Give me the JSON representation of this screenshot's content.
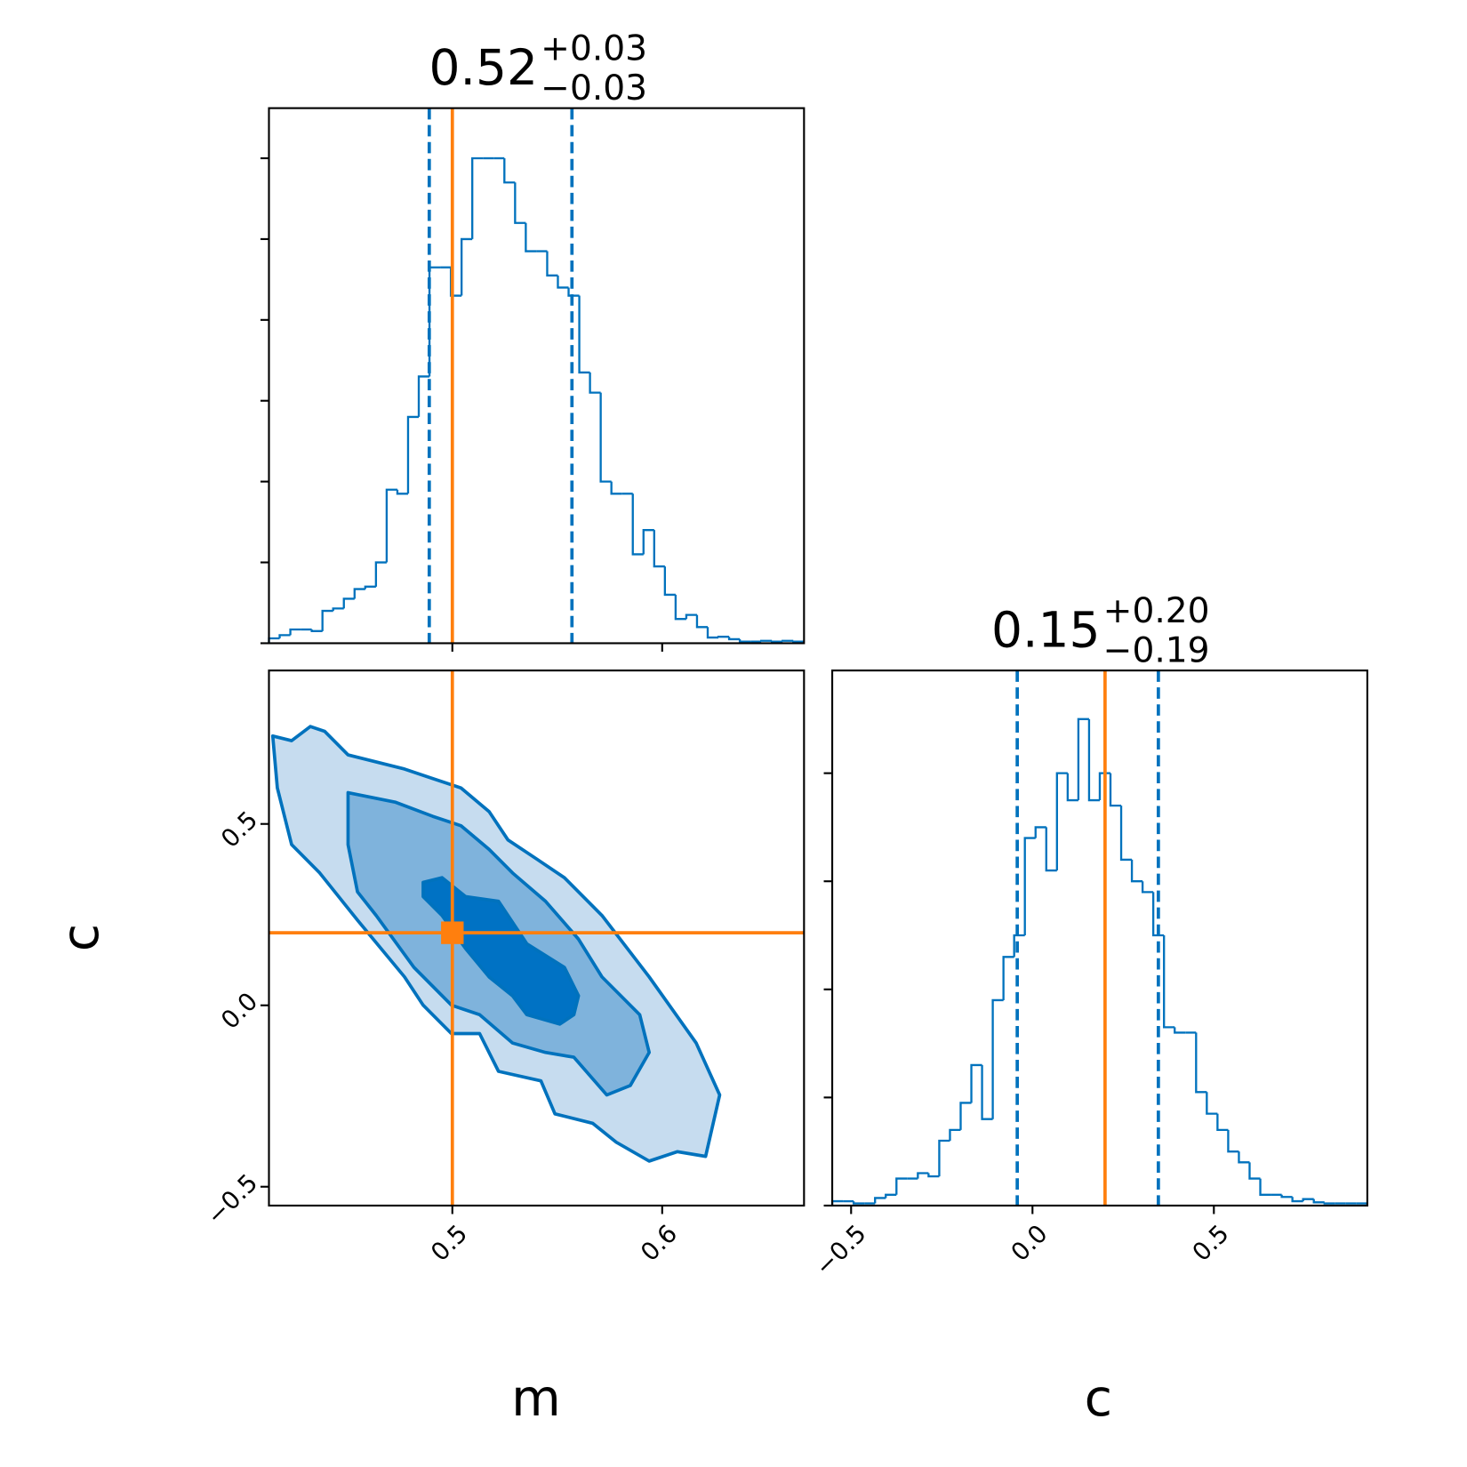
{
  "chart_data": [
    {
      "type": "histogram",
      "title": "0.52",
      "title_upper": "+0.03",
      "title_lower": "−0.03",
      "bins": [
        0.4126,
        0.4177,
        0.4228,
        0.4279,
        0.433,
        0.4381,
        0.4432,
        0.4483,
        0.4534,
        0.4585,
        0.4636,
        0.4687,
        0.4738,
        0.4789,
        0.484,
        0.4891,
        0.4942,
        0.4993,
        0.5044,
        0.5095,
        0.5146,
        0.5197,
        0.5248,
        0.5299,
        0.535,
        0.5401,
        0.5452,
        0.5503,
        0.5554,
        0.5605,
        0.5656,
        0.5707,
        0.5758,
        0.5809,
        0.586,
        0.5911,
        0.5962,
        0.6013,
        0.6064,
        0.6115,
        0.6166,
        0.6217,
        0.6268,
        0.6319,
        0.637,
        0.6421,
        0.6472,
        0.6523,
        0.6574,
        0.6625,
        0.6676
      ],
      "values": [
        0.06,
        0.1,
        0.17,
        0.17,
        0.15,
        0.4,
        0.43,
        0.55,
        0.67,
        0.7,
        1.0,
        1.9,
        1.85,
        2.8,
        3.3,
        4.65,
        4.65,
        4.3,
        5.0,
        6.0,
        6.0,
        6.0,
        5.7,
        5.2,
        4.85,
        4.85,
        4.55,
        4.4,
        4.3,
        3.35,
        3.1,
        2.0,
        1.85,
        1.85,
        1.1,
        1.4,
        0.95,
        0.6,
        0.3,
        0.35,
        0.2,
        0.07,
        0.08,
        0.05,
        0.02,
        0.02,
        0.03,
        0.02,
        0.03,
        0.02
      ],
      "color": "#0072bd",
      "quantiles": [
        0.489,
        0.557
      ],
      "quantile_color": "#0072bd",
      "truth": 0.5,
      "truth_color": "#ff7f0e",
      "xlim": [
        0.4126,
        0.6676
      ],
      "xticks": [
        0.5,
        0.6
      ],
      "show_xtick_labels": false,
      "ylim": [
        0,
        6.62
      ],
      "yticks": [
        0,
        1,
        2,
        3,
        4,
        5,
        6
      ],
      "show_ytick_labels": false
    },
    {
      "type": "contour",
      "xlabel": "m",
      "ylabel": "c",
      "line_color": "#0072bd",
      "contours": [
        {
          "color": "#c6dcef",
          "x": [
            0.4144,
            0.4234,
            0.4323,
            0.4391,
            0.4503,
            0.4772,
            0.4906,
            0.5041,
            0.5175,
            0.5265,
            0.54,
            0.5534,
            0.5713,
            0.5938,
            0.6162,
            0.6274,
            0.6207,
            0.6072,
            0.5938,
            0.5781,
            0.5669,
            0.5489,
            0.5422,
            0.522,
            0.513,
            0.4996,
            0.4861,
            0.4772,
            0.4548,
            0.4368,
            0.4234,
            0.4166
          ],
          "y": [
            0.7425,
            0.7295,
            0.7685,
            0.7555,
            0.6904,
            0.6514,
            0.6253,
            0.5993,
            0.5342,
            0.456,
            0.404,
            0.3519,
            0.2477,
            0.0784,
            -0.1039,
            -0.2471,
            -0.4164,
            -0.4034,
            -0.4294,
            -0.3773,
            -0.3253,
            -0.2992,
            -0.2081,
            -0.182,
            -0.0779,
            -0.0779,
            0.0003,
            0.0784,
            0.2347,
            0.3649,
            0.443,
            0.5993
          ]
        },
        {
          "color": "#7fb3dc",
          "x": [
            0.4503,
            0.4727,
            0.4906,
            0.5041,
            0.5175,
            0.5287,
            0.5444,
            0.5601,
            0.5713,
            0.5893,
            0.5938,
            0.5848,
            0.5736,
            0.5579,
            0.5444,
            0.5287,
            0.513,
            0.4996,
            0.4817,
            0.4637,
            0.4548,
            0.4503
          ],
          "y": [
            0.5863,
            0.5602,
            0.5212,
            0.4951,
            0.43,
            0.3649,
            0.2868,
            0.1826,
            0.0784,
            -0.0258,
            -0.1299,
            -0.2211,
            -0.2471,
            -0.143,
            -0.1299,
            -0.1039,
            -0.0258,
            0.0003,
            0.1045,
            0.2477,
            0.3128,
            0.443
          ]
        },
        {
          "color": "#0072c4",
          "x": [
            0.4861,
            0.4951,
            0.5063,
            0.522,
            0.5355,
            0.5534,
            0.5601,
            0.5579,
            0.5512,
            0.5355,
            0.5287,
            0.5175,
            0.5063,
            0.4951,
            0.4861
          ],
          "y": [
            0.3389,
            0.3519,
            0.2998,
            0.2868,
            0.1696,
            0.1045,
            0.0263,
            -0.0258,
            -0.0518,
            -0.0258,
            0.0263,
            0.0784,
            0.1566,
            0.2477,
            0.2998
          ]
        }
      ],
      "truth": [
        0.5,
        0.2
      ],
      "truth_color": "#ff7f0e",
      "xlim": [
        0.4126,
        0.6676
      ],
      "xticks": [
        0.5,
        0.6
      ],
      "ylim": [
        -0.552,
        0.923
      ],
      "yticks": [
        {
          "value": -0.5,
          "label": "−0.5"
        },
        {
          "value": 0,
          "label": "0.0"
        },
        0.5
      ]
    },
    {
      "type": "histogram",
      "title": "0.15",
      "title_upper": "+0.20",
      "title_lower": "−0.19",
      "xlabel": "c",
      "bins": [
        -0.552,
        -0.5225,
        -0.493,
        -0.4635,
        -0.434,
        -0.4045,
        -0.375,
        -0.3455,
        -0.316,
        -0.2865,
        -0.257,
        -0.2275,
        -0.198,
        -0.1685,
        -0.139,
        -0.1095,
        -0.08,
        -0.0505,
        -0.021,
        0.0085,
        0.038,
        0.0675,
        0.097,
        0.1265,
        0.156,
        0.1855,
        0.215,
        0.2445,
        0.274,
        0.3035,
        0.333,
        0.3625,
        0.392,
        0.4215,
        0.451,
        0.4805,
        0.51,
        0.5395,
        0.569,
        0.5985,
        0.628,
        0.6575,
        0.687,
        0.7165,
        0.746,
        0.7755,
        0.805,
        0.8345,
        0.864,
        0.8935,
        0.923
      ],
      "values": [
        0.04,
        0.04,
        0.02,
        0.02,
        0.07,
        0.1,
        0.25,
        0.25,
        0.3,
        0.27,
        0.6,
        0.7,
        0.95,
        1.3,
        0.8,
        1.9,
        2.3,
        2.5,
        3.4,
        3.5,
        3.1,
        4.0,
        3.75,
        4.5,
        3.75,
        4.0,
        3.7,
        3.2,
        3.0,
        2.9,
        2.5,
        1.65,
        1.6,
        1.6,
        1.05,
        0.85,
        0.7,
        0.5,
        0.4,
        0.25,
        0.1,
        0.1,
        0.08,
        0.04,
        0.06,
        0.03,
        0.02,
        0.02,
        0.02,
        0.02
      ],
      "color": "#0072bd",
      "quantiles": [
        -0.042,
        0.347
      ],
      "quantile_color": "#0072bd",
      "truth": 0.2,
      "truth_color": "#ff7f0e",
      "xlim": [
        -0.552,
        0.923
      ],
      "xticks": [
        {
          "value": -0.5,
          "label": "−0.5"
        },
        {
          "value": 0,
          "label": "0.0"
        },
        0.5
      ],
      "ylim": [
        0,
        4.95
      ],
      "yticks": [
        0,
        1,
        2,
        3,
        4
      ],
      "show_ytick_labels": false
    }
  ]
}
